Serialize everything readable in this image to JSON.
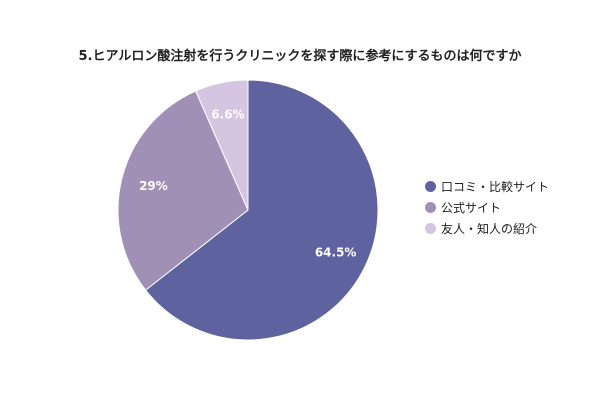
{
  "chart_data": {
    "type": "pie",
    "title": "5.ヒアルロン酸注射を行うクリニックを探す際に参考にするものは何ですか",
    "categories": [
      "口コミ・比較サイト",
      "公式サイト",
      "友人・知人の紹介"
    ],
    "values": [
      64.5,
      29,
      6.6
    ],
    "value_labels": [
      "64.5%",
      "29%",
      "6.6%"
    ],
    "colors": [
      "#5e63a0",
      "#a090b5",
      "#d5c5e0"
    ],
    "legend_position": "right"
  }
}
